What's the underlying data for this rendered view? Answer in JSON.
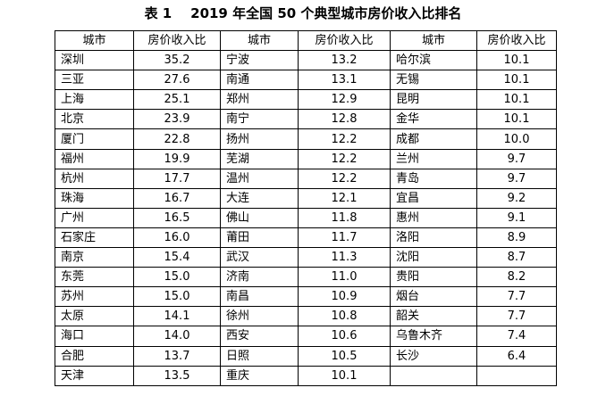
{
  "title": "表 1    2019 年全国 50 个典型城市房价收入比排名",
  "headers": [
    "城市",
    "房价收入比",
    "城市",
    "房价收入比",
    "城市",
    "房价收入比"
  ],
  "rows": [
    [
      "深圳",
      "35.2",
      "宁波",
      "13.2",
      "哈尔滨",
      "10.1"
    ],
    [
      "三亚",
      "27.6",
      "南通",
      "13.1",
      "无锡",
      "10.1"
    ],
    [
      "上海",
      "25.1",
      "郑州",
      "12.9",
      "昆明",
      "10.1"
    ],
    [
      "北京",
      "23.9",
      "南宁",
      "12.8",
      "金华",
      "10.1"
    ],
    [
      "厦门",
      "22.8",
      "扬州",
      "12.2",
      "成都",
      "10.0"
    ],
    [
      "福州",
      "19.9",
      "芜湖",
      "12.2",
      "兰州",
      "9.7"
    ],
    [
      "杭州",
      "17.7",
      "温州",
      "12.2",
      "青岛",
      "9.7"
    ],
    [
      "珠海",
      "16.7",
      "大连",
      "12.1",
      "宜昌",
      "9.2"
    ],
    [
      "广州",
      "16.5",
      "佛山",
      "11.8",
      "惠州",
      "9.1"
    ],
    [
      "石家庄",
      "16.0",
      "莆田",
      "11.7",
      "洛阳",
      "8.9"
    ],
    [
      "南京",
      "15.4",
      "武汉",
      "11.3",
      "沈阳",
      "8.7"
    ],
    [
      "东莞",
      "15.0",
      "济南",
      "11.0",
      "贵阳",
      "8.2"
    ],
    [
      "苏州",
      "15.0",
      "南昌",
      "10.9",
      "烟台",
      "7.7"
    ],
    [
      "太原",
      "14.1",
      "徐州",
      "10.8",
      "韶关",
      "7.7"
    ],
    [
      "海口",
      "14.0",
      "西安",
      "10.6",
      "乌鲁木齐",
      "7.4"
    ],
    [
      "合肥",
      "13.7",
      "日照",
      "10.5",
      "长沙",
      "6.4"
    ],
    [
      "天津",
      "13.5",
      "重庆",
      "10.1",
      "",
      ""
    ]
  ]
}
